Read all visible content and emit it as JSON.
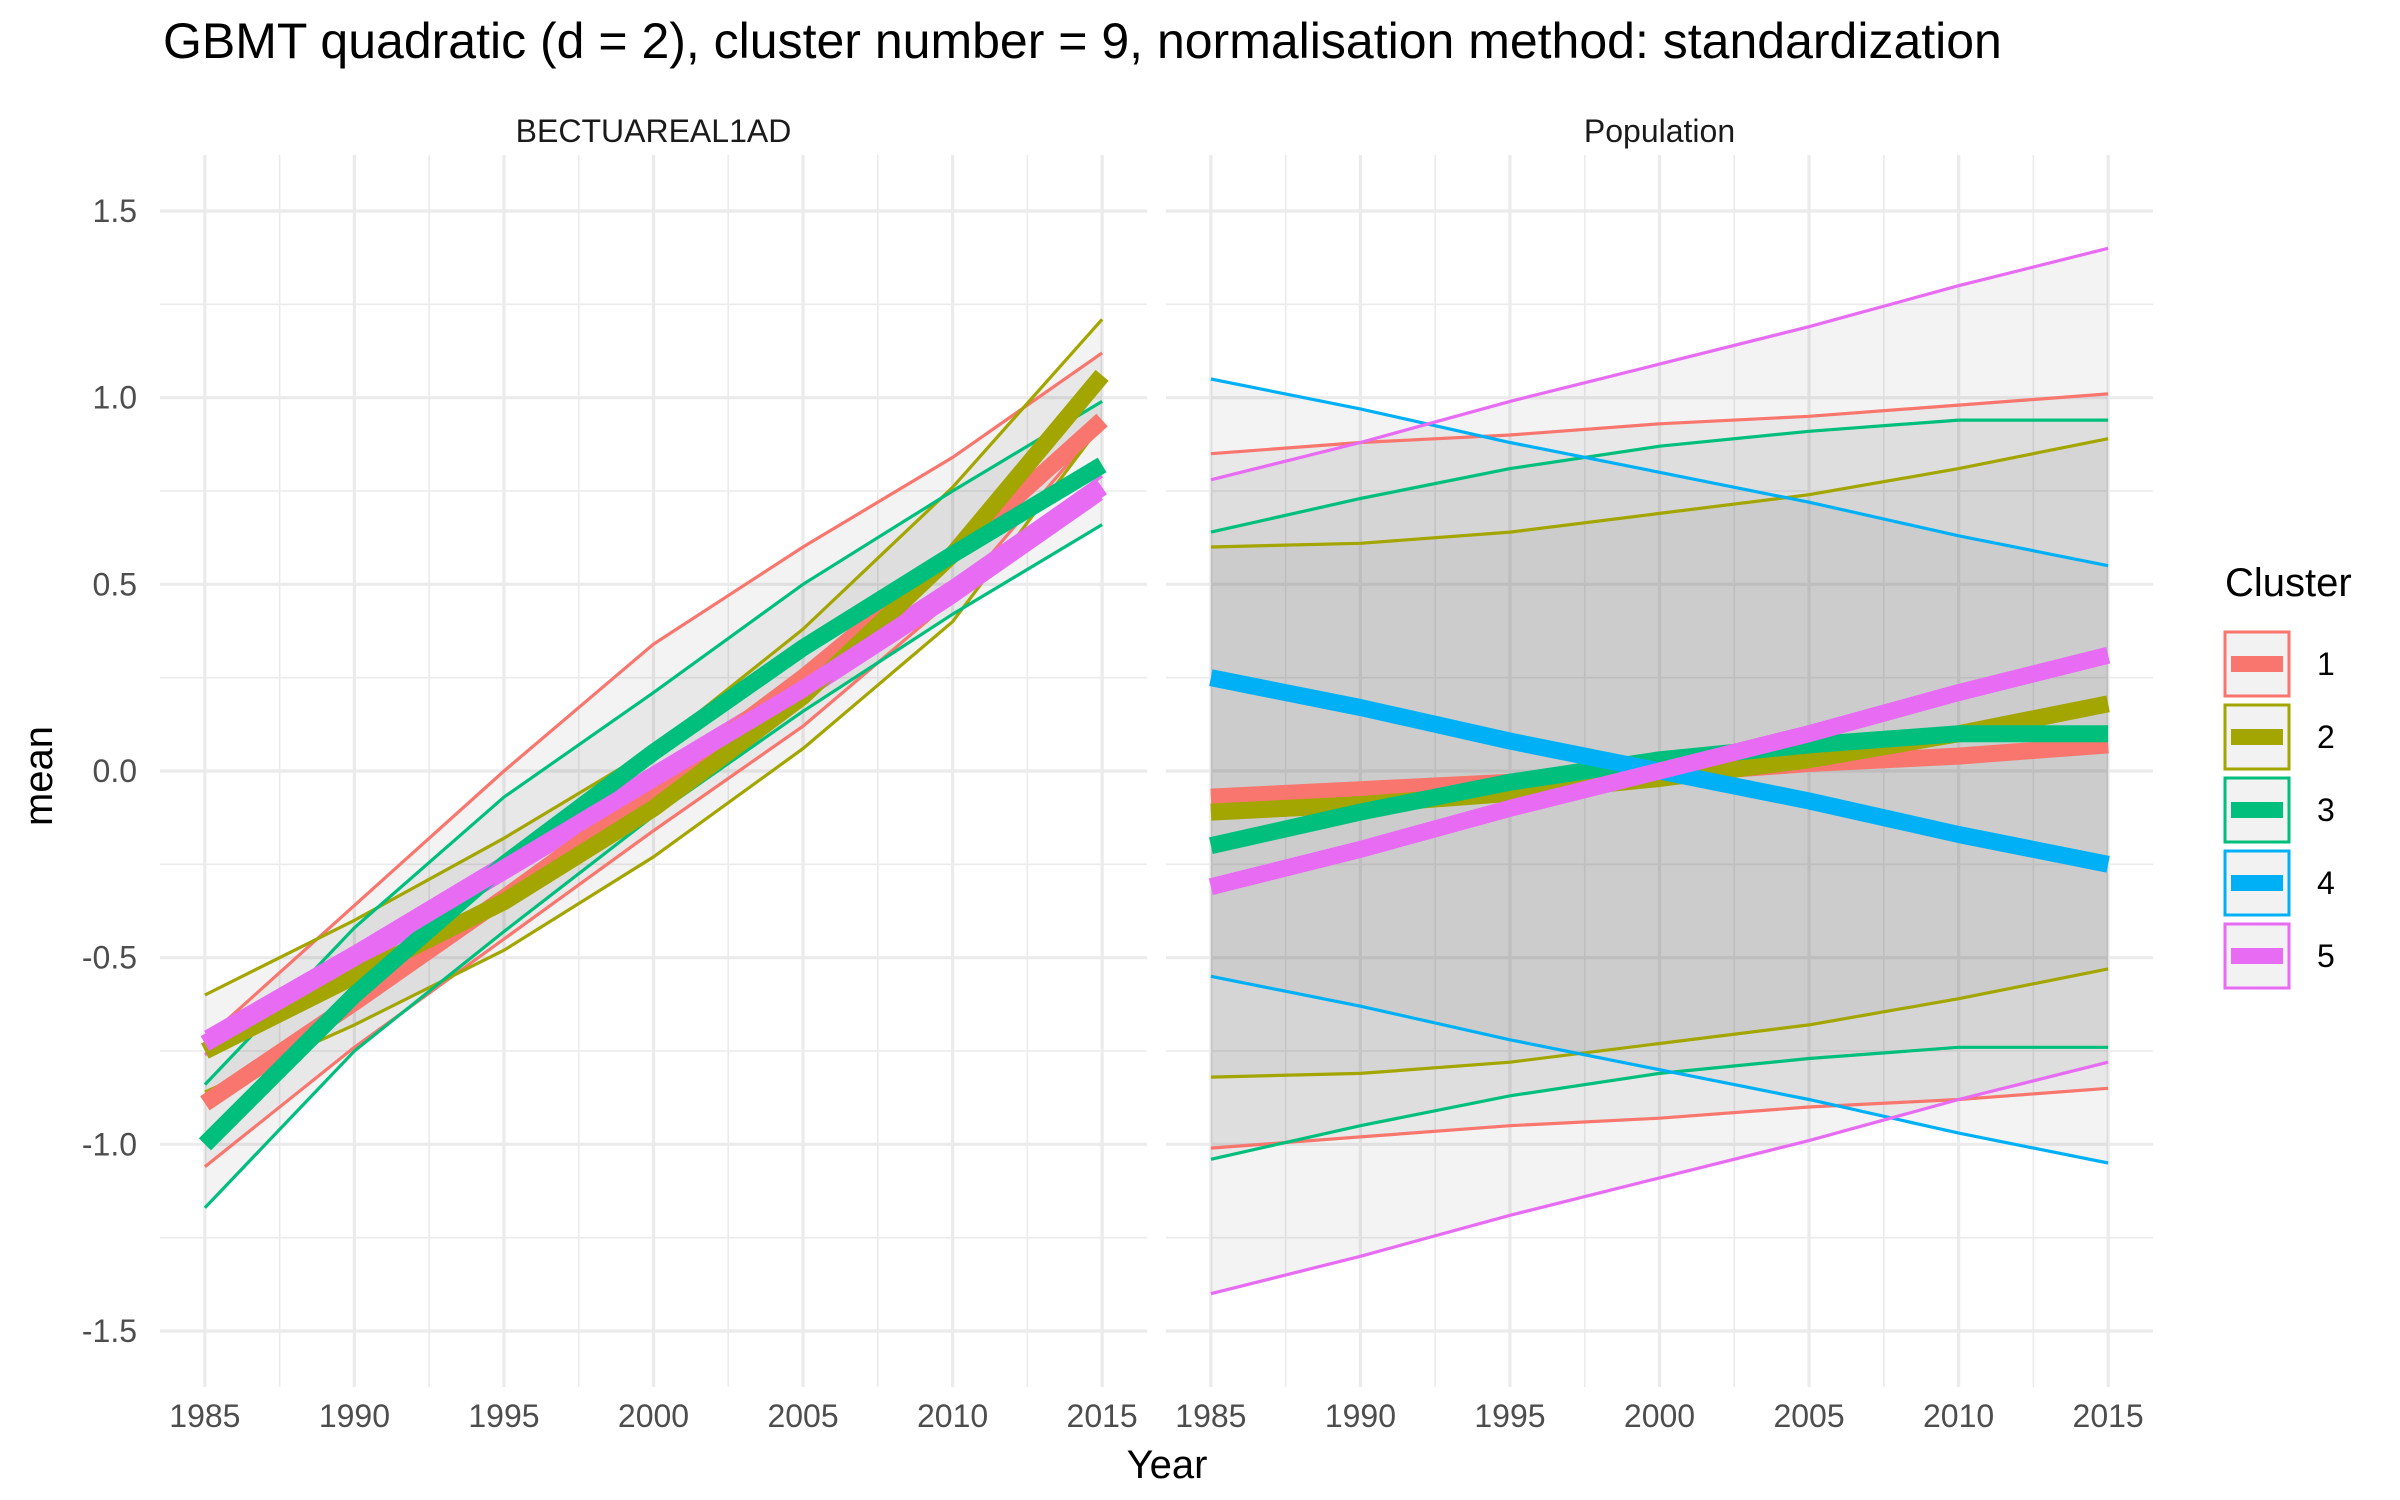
{
  "chart_data": {
    "type": "line",
    "title": "GBMT quadratic (d = 2), cluster number = 9, normalisation method: standardization",
    "xlabel": "Year",
    "ylabel": "mean",
    "xlim": [
      1985,
      2015
    ],
    "ylim": [
      -1.5,
      1.5
    ],
    "x_ticks": [
      1985,
      1990,
      1995,
      2000,
      2005,
      2010,
      2015
    ],
    "y_ticks": [
      1.5,
      1.0,
      0.5,
      0.0,
      -0.5,
      -1.0,
      -1.5
    ],
    "y_tick_labels": [
      "1.5",
      "1.0",
      "0.5",
      "0.0",
      "-0.5",
      "-1.0",
      "-1.5"
    ],
    "grid": true,
    "legend": {
      "title": "Cluster",
      "position": "right",
      "entries": [
        {
          "label": "1",
          "color": "#F8766D"
        },
        {
          "label": "2",
          "color": "#A3A500"
        },
        {
          "label": "3",
          "color": "#00BF7D"
        },
        {
          "label": "4",
          "color": "#00B0F6"
        },
        {
          "label": "5",
          "color": "#E76BF3"
        }
      ]
    },
    "x": [
      1985,
      1990,
      1995,
      2000,
      2005,
      2010,
      2015
    ],
    "panels": [
      {
        "name": "BECTUAREAL1AD",
        "series": [
          {
            "name": "1",
            "color": "#F8766D",
            "mean": [
              -0.89,
              -0.62,
              -0.34,
              -0.05,
              0.25,
              0.58,
              0.94
            ],
            "upper": [
              -0.72,
              -0.36,
              0.0,
              0.34,
              0.6,
              0.84,
              1.12
            ],
            "lower": [
              -1.06,
              -0.74,
              -0.45,
              -0.16,
              0.12,
              0.46,
              0.93
            ]
          },
          {
            "name": "2",
            "color": "#A3A500",
            "mean": [
              -0.75,
              -0.55,
              -0.35,
              -0.1,
              0.2,
              0.58,
              1.06
            ],
            "upper": [
              -0.6,
              -0.4,
              -0.18,
              0.06,
              0.38,
              0.76,
              1.21
            ],
            "lower": [
              -0.86,
              -0.68,
              -0.48,
              -0.23,
              0.06,
              0.4,
              0.93
            ]
          },
          {
            "name": "3",
            "color": "#00BF7D",
            "mean": [
              -1.0,
              -0.6,
              -0.25,
              0.05,
              0.33,
              0.58,
              0.82
            ],
            "upper": [
              -0.84,
              -0.42,
              -0.07,
              0.21,
              0.5,
              0.75,
              0.99
            ],
            "lower": [
              -1.17,
              -0.75,
              -0.43,
              -0.12,
              0.16,
              0.42,
              0.66
            ]
          },
          {
            "name": "5",
            "color": "#E76BF3",
            "mean": [
              -0.73,
              -0.5,
              -0.26,
              -0.02,
              0.22,
              0.48,
              0.76
            ],
            "upper": [
              -0.7,
              -0.47,
              -0.23,
              0.01,
              0.25,
              0.51,
              0.79
            ],
            "lower": [
              -0.76,
              -0.53,
              -0.29,
              -0.05,
              0.19,
              0.45,
              0.73
            ]
          }
        ]
      },
      {
        "name": "Population",
        "series": [
          {
            "name": "1",
            "color": "#F8766D",
            "mean": [
              -0.07,
              -0.05,
              -0.03,
              -0.01,
              0.02,
              0.04,
              0.07
            ],
            "upper": [
              0.85,
              0.88,
              0.9,
              0.93,
              0.95,
              0.98,
              1.01
            ],
            "lower": [
              -1.01,
              -0.98,
              -0.95,
              -0.93,
              -0.9,
              -0.88,
              -0.85
            ]
          },
          {
            "name": "2",
            "color": "#A3A500",
            "mean": [
              -0.11,
              -0.09,
              -0.06,
              -0.02,
              0.03,
              0.1,
              0.18
            ],
            "upper": [
              0.6,
              0.61,
              0.64,
              0.69,
              0.74,
              0.81,
              0.89
            ],
            "lower": [
              -0.82,
              -0.81,
              -0.78,
              -0.73,
              -0.68,
              -0.61,
              -0.53
            ]
          },
          {
            "name": "3",
            "color": "#00BF7D",
            "mean": [
              -0.2,
              -0.11,
              -0.03,
              0.03,
              0.07,
              0.1,
              0.1
            ],
            "upper": [
              0.64,
              0.73,
              0.81,
              0.87,
              0.91,
              0.94,
              0.94
            ],
            "lower": [
              -1.04,
              -0.95,
              -0.87,
              -0.81,
              -0.77,
              -0.74,
              -0.74
            ]
          },
          {
            "name": "4",
            "color": "#00B0F6",
            "mean": [
              0.25,
              0.17,
              0.08,
              0.0,
              -0.08,
              -0.17,
              -0.25
            ],
            "upper": [
              1.05,
              0.97,
              0.88,
              0.8,
              0.72,
              0.63,
              0.55
            ],
            "lower": [
              -0.55,
              -0.63,
              -0.72,
              -0.8,
              -0.88,
              -0.97,
              -1.05
            ]
          },
          {
            "name": "5",
            "color": "#E76BF3",
            "mean": [
              -0.31,
              -0.21,
              -0.1,
              0.0,
              0.1,
              0.21,
              0.31
            ],
            "upper": [
              0.78,
              0.88,
              0.99,
              1.09,
              1.19,
              1.3,
              1.4
            ],
            "lower": [
              -1.4,
              -1.3,
              -1.19,
              -1.09,
              -0.99,
              -0.88,
              -0.78
            ]
          }
        ]
      }
    ]
  }
}
